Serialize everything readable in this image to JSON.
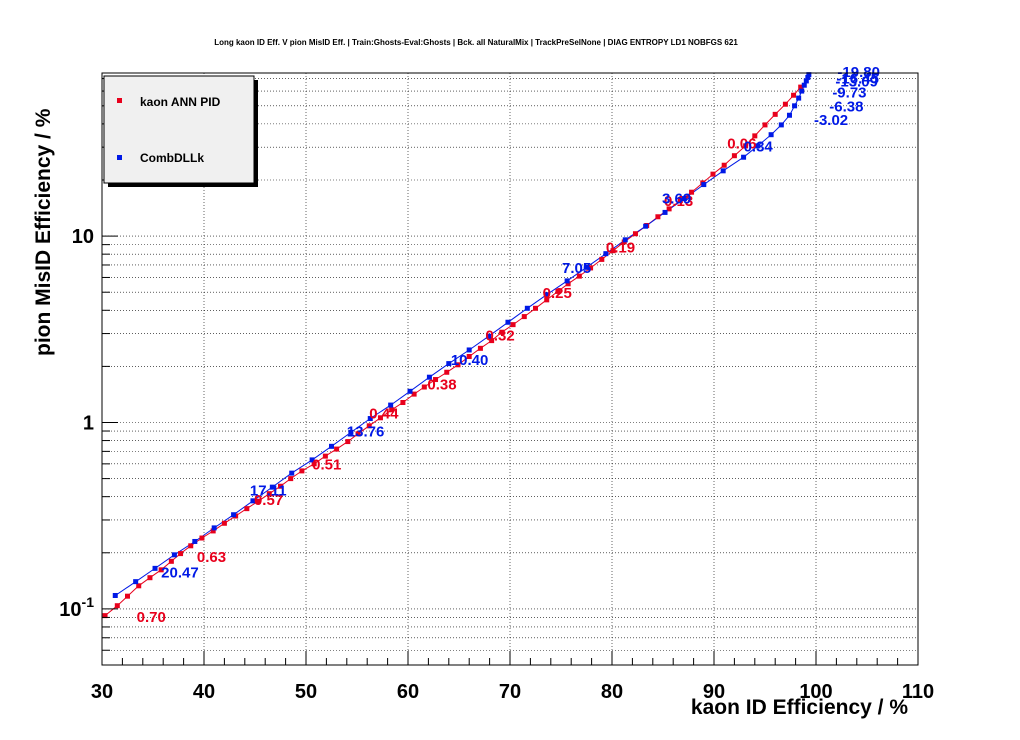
{
  "chart_data": {
    "type": "line",
    "title": "Long kaon ID Eff. V pion MisID Eff. | Train:Ghosts-Eval:Ghosts | Bck. all NaturalMix | TrackPreSelNone | DIAG ENTROPY LD1 NOBFGS 621",
    "xlabel": "kaon ID Efficiency / %",
    "ylabel": "pion MisID Efficiency / %",
    "xlim": [
      30,
      110
    ],
    "ylim": [
      0.05,
      75
    ],
    "y_scale": "log",
    "grid": true,
    "legend_position": "top-left",
    "x_ticks": [
      {
        "v": 30,
        "t": "30"
      },
      {
        "v": 40,
        "t": "40"
      },
      {
        "v": 50,
        "t": "50"
      },
      {
        "v": 60,
        "t": "60"
      },
      {
        "v": 70,
        "t": "70"
      },
      {
        "v": 80,
        "t": "80"
      },
      {
        "v": 90,
        "t": "90"
      },
      {
        "v": 100,
        "t": "100"
      },
      {
        "v": 110,
        "t": "110"
      }
    ],
    "y_ticks": [
      {
        "v": 0.1,
        "t": "10",
        "sup": "-1"
      },
      {
        "v": 1,
        "t": "1",
        "sup": ""
      },
      {
        "v": 10,
        "t": "10",
        "sup": ""
      }
    ],
    "series": [
      {
        "name": "kaon ANN PID",
        "color": "#e8001c",
        "marker": "square",
        "x": [
          30.3,
          31.5,
          32.5,
          33.6,
          34.7,
          35.8,
          36.8,
          37.7,
          38.7,
          39.8,
          40.9,
          42.0,
          43.1,
          44.2,
          45.3,
          46.4,
          47.5,
          48.5,
          49.6,
          50.8,
          51.9,
          53.0,
          54.1,
          55.1,
          56.2,
          57.3,
          58.4,
          59.5,
          60.6,
          61.6,
          62.7,
          63.8,
          64.9,
          66.0,
          67.1,
          68.2,
          69.2,
          70.3,
          71.4,
          72.5,
          73.6,
          74.7,
          75.7,
          76.8,
          77.9,
          79.0,
          80.1,
          81.2,
          82.3,
          83.4,
          84.5,
          85.6,
          86.7,
          87.8,
          88.9,
          89.9,
          91.0,
          92.0,
          93.1,
          94.0,
          95.0,
          96.0,
          97.0,
          97.8,
          98.5
        ],
        "y": [
          0.092,
          0.104,
          0.117,
          0.133,
          0.147,
          0.162,
          0.18,
          0.198,
          0.218,
          0.24,
          0.262,
          0.288,
          0.315,
          0.345,
          0.378,
          0.415,
          0.455,
          0.5,
          0.55,
          0.6,
          0.66,
          0.72,
          0.79,
          0.87,
          0.96,
          1.06,
          1.17,
          1.28,
          1.42,
          1.55,
          1.7,
          1.86,
          2.04,
          2.26,
          2.5,
          2.75,
          3.05,
          3.35,
          3.7,
          4.1,
          4.55,
          5.05,
          5.55,
          6.1,
          6.75,
          7.5,
          8.35,
          9.3,
          10.3,
          11.4,
          12.7,
          14.0,
          15.5,
          17.2,
          19.3,
          21.5,
          24.0,
          27.0,
          30.5,
          34.5,
          39.5,
          45.0,
          51.0,
          57.0,
          63.0
        ],
        "annotations": [
          {
            "x": 33.4,
            "y": 0.085,
            "text": "0.70"
          },
          {
            "x": 39.3,
            "y": 0.178,
            "text": "0.63"
          },
          {
            "x": 44.9,
            "y": 0.36,
            "text": "0.57"
          },
          {
            "x": 50.6,
            "y": 0.56,
            "text": "0.51"
          },
          {
            "x": 56.2,
            "y": 1.05,
            "text": "0.44"
          },
          {
            "x": 61.9,
            "y": 1.5,
            "text": "0.38"
          },
          {
            "x": 67.6,
            "y": 2.75,
            "text": "0.32"
          },
          {
            "x": 73.2,
            "y": 4.65,
            "text": "0.25"
          },
          {
            "x": 79.4,
            "y": 8.15,
            "text": "0.19"
          },
          {
            "x": 85.1,
            "y": 14.5,
            "text": "0.13"
          },
          {
            "x": 91.3,
            "y": 29.5,
            "text": "0.06"
          }
        ]
      },
      {
        "name": "CombDLLk",
        "color": "#0019e6",
        "marker": "square",
        "x": [
          31.3,
          33.3,
          35.2,
          37.1,
          39.1,
          41.0,
          42.9,
          44.8,
          46.7,
          48.6,
          50.6,
          52.5,
          54.4,
          56.3,
          58.3,
          60.2,
          62.1,
          64.0,
          66.0,
          67.9,
          69.8,
          71.7,
          73.6,
          75.6,
          77.5,
          79.4,
          81.3,
          83.3,
          85.2,
          87.1,
          89.0,
          90.9,
          92.9,
          94.3,
          95.6,
          96.6,
          97.4,
          97.9,
          98.3,
          98.6,
          98.85,
          99.05,
          99.2,
          99.3
        ],
        "y": [
          0.118,
          0.14,
          0.165,
          0.195,
          0.23,
          0.272,
          0.32,
          0.38,
          0.45,
          0.535,
          0.63,
          0.745,
          0.885,
          1.05,
          1.24,
          1.47,
          1.75,
          2.07,
          2.45,
          2.9,
          3.45,
          4.1,
          4.85,
          5.75,
          6.8,
          8.05,
          9.55,
          11.3,
          13.4,
          15.9,
          18.9,
          22.4,
          26.5,
          30.5,
          35.0,
          39.5,
          44.5,
          50.0,
          55.0,
          60.0,
          64.5,
          68.0,
          71.0,
          73.5
        ],
        "annotations": [
          {
            "x": 35.8,
            "y": 0.147,
            "text": "20.47"
          },
          {
            "x": 44.5,
            "y": 0.405,
            "text": "17.11"
          },
          {
            "x": 54.0,
            "y": 0.84,
            "text": "13.76"
          },
          {
            "x": 64.2,
            "y": 2.03,
            "text": "10.40"
          },
          {
            "x": 75.1,
            "y": 6.35,
            "text": "7.05"
          },
          {
            "x": 84.9,
            "y": 15.0,
            "text": "3.69"
          },
          {
            "x": 92.9,
            "y": 28.4,
            "text": "0.34"
          },
          {
            "x": 99.8,
            "y": 39.5,
            "text": "-3.02"
          },
          {
            "x": 101.3,
            "y": 46.5,
            "text": "-6.38"
          },
          {
            "x": 101.6,
            "y": 55.5,
            "text": "-9.73"
          },
          {
            "x": 101.9,
            "y": 63.5,
            "text": "-13.09"
          },
          {
            "x": 102.0,
            "y": 66.0,
            "text": "-16.45"
          },
          {
            "x": 102.1,
            "y": 71.5,
            "text": "-19.80"
          }
        ]
      }
    ]
  }
}
